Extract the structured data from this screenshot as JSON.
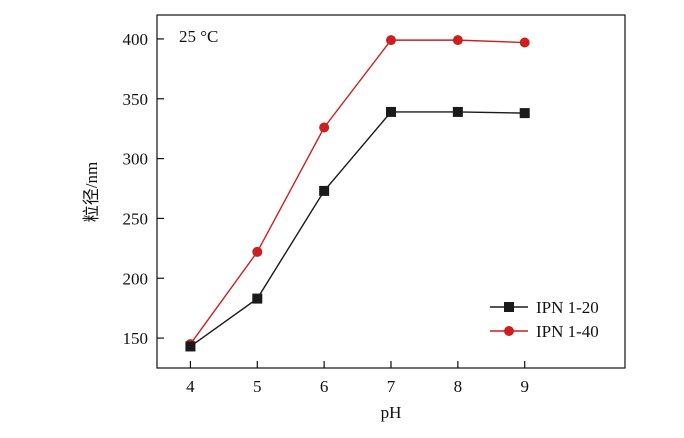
{
  "chart_data": {
    "type": "line",
    "annotation": "25 °C",
    "xlabel": "pH",
    "ylabel": "粒径/nm",
    "x": [
      4,
      5,
      6,
      7,
      8,
      9
    ],
    "xlim": [
      3.5,
      10.5
    ],
    "ylim": [
      125,
      420
    ],
    "x_ticks": [
      4,
      5,
      6,
      7,
      8,
      9
    ],
    "y_ticks": [
      150,
      200,
      250,
      300,
      350,
      400
    ],
    "grid": false,
    "legend_position": "bottom-right",
    "series": [
      {
        "name": "IPN 1-20",
        "values": [
          143,
          183,
          273,
          339,
          339,
          338
        ],
        "color": "#1a1a1a",
        "marker": "square"
      },
      {
        "name": "IPN 1-40",
        "values": [
          145,
          222,
          326,
          399,
          399,
          397
        ],
        "color": "#cc1f1f",
        "marker": "circle"
      }
    ]
  }
}
